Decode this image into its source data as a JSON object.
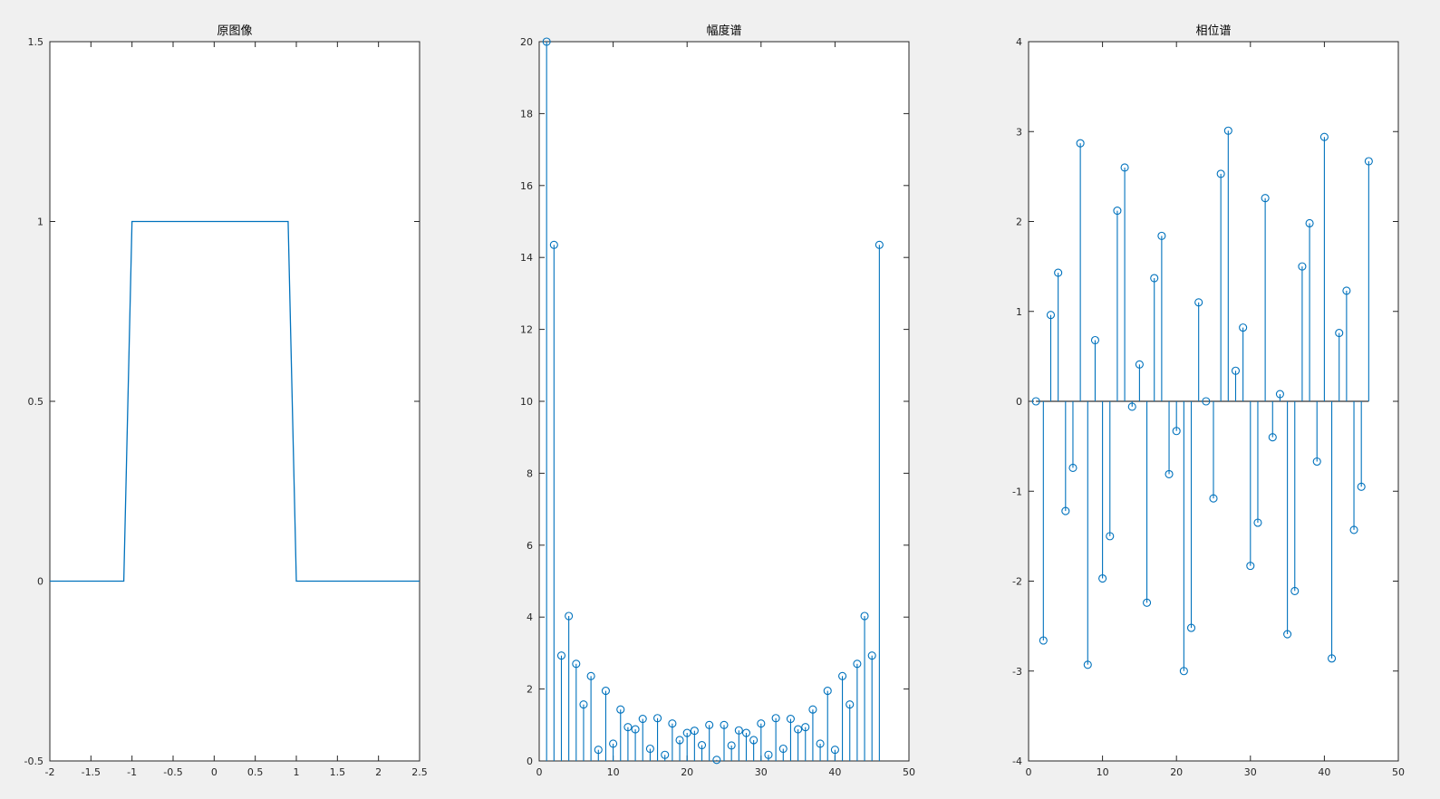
{
  "figure": {
    "background": "#f0f0f0",
    "series_color": "#0072bd",
    "axes_color": "#262626"
  },
  "chart_data": [
    {
      "type": "line",
      "title": "原图像",
      "xlabel": "",
      "ylabel": "",
      "xlim": [
        -2,
        2.5
      ],
      "ylim": [
        -0.5,
        1.5
      ],
      "xticks": [
        "-2",
        "-1.5",
        "-1",
        "-0.5",
        "0",
        "0.5",
        "1",
        "1.5",
        "2",
        "2.5"
      ],
      "yticks": [
        "-0.5",
        "0",
        "0.5",
        "1",
        "1.5"
      ],
      "grid": false,
      "x": [
        -2,
        -1.1,
        -1,
        0.9,
        1,
        2.5
      ],
      "y": [
        0,
        0,
        1,
        1,
        0,
        0
      ]
    },
    {
      "type": "stem",
      "title": "幅度谱",
      "xlabel": "",
      "ylabel": "",
      "xlim": [
        0,
        50
      ],
      "ylim": [
        0,
        20
      ],
      "xticks": [
        "0",
        "10",
        "20",
        "30",
        "40",
        "50"
      ],
      "yticks": [
        "0",
        "2",
        "4",
        "6",
        "8",
        "10",
        "12",
        "14",
        "16",
        "18",
        "20"
      ],
      "grid": false,
      "x": [
        1,
        2,
        3,
        4,
        5,
        6,
        7,
        8,
        9,
        10,
        11,
        12,
        13,
        14,
        15,
        16,
        17,
        18,
        19,
        20,
        21,
        22,
        23,
        24,
        25,
        26,
        27,
        28,
        29,
        30,
        31,
        32,
        33,
        34,
        35,
        36,
        37,
        38,
        39,
        40,
        41,
        42,
        43,
        44,
        45,
        46
      ],
      "y": [
        20,
        14.35,
        2.93,
        4.03,
        2.7,
        1.57,
        2.36,
        0.31,
        1.95,
        0.48,
        1.43,
        0.94,
        0.88,
        1.17,
        0.34,
        1.19,
        0.17,
        1.04,
        0.58,
        0.78,
        0.84,
        0.44,
        1.0,
        0.03,
        1.0,
        0.43,
        0.85,
        0.78,
        0.58,
        1.04,
        0.17,
        1.19,
        0.34,
        1.17,
        0.88,
        0.94,
        1.43,
        0.48,
        1.95,
        0.31,
        2.36,
        1.57,
        2.7,
        4.03,
        2.93,
        14.35
      ]
    },
    {
      "type": "stem",
      "title": "相位谱",
      "xlabel": "",
      "ylabel": "",
      "xlim": [
        0,
        50
      ],
      "ylim": [
        -4,
        4
      ],
      "xticks": [
        "0",
        "10",
        "20",
        "30",
        "40",
        "50"
      ],
      "yticks": [
        "-4",
        "-3",
        "-2",
        "-1",
        "0",
        "1",
        "2",
        "3",
        "4"
      ],
      "grid": false,
      "x": [
        1,
        2,
        3,
        4,
        5,
        6,
        7,
        8,
        9,
        10,
        11,
        12,
        13,
        14,
        15,
        16,
        17,
        18,
        19,
        20,
        21,
        22,
        23,
        24,
        25,
        26,
        27,
        28,
        29,
        30,
        31,
        32,
        33,
        34,
        35,
        36,
        37,
        38,
        39,
        40,
        41,
        42,
        43,
        44,
        45,
        46
      ],
      "y": [
        0,
        -2.66,
        0.96,
        1.43,
        -1.22,
        -0.74,
        2.87,
        -2.93,
        0.68,
        -1.97,
        -1.5,
        2.12,
        2.6,
        -0.06,
        0.41,
        -2.24,
        1.37,
        1.84,
        -0.81,
        -0.33,
        -3.0,
        -2.52,
        1.1,
        0,
        -1.08,
        2.53,
        3.01,
        0.34,
        0.82,
        -1.83,
        -1.35,
        2.26,
        -0.4,
        0.08,
        -2.59,
        -2.11,
        1.5,
        1.98,
        -0.67,
        2.94,
        -2.86,
        0.76,
        1.23,
        -1.43,
        -0.95,
        2.67
      ]
    }
  ]
}
